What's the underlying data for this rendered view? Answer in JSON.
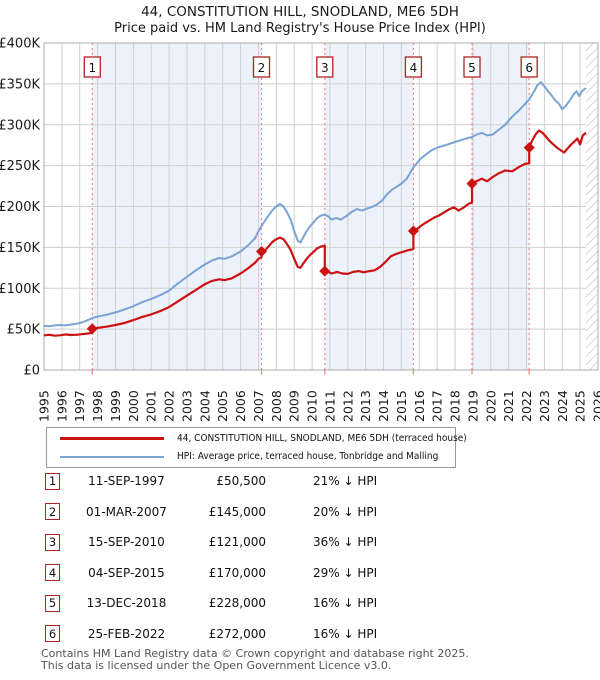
{
  "header": {
    "title": "44, CONSTITUTION HILL, SNODLAND, ME6 5DH",
    "subtitle": "Price paid vs. HM Land Registry's House Price Index (HPI)"
  },
  "colors": {
    "price": "#cc1111",
    "hpi": "#7aa3d4",
    "grid": "#cfcfcf",
    "plot_border": "#ababab",
    "band": "#edf2fa",
    "dashed": "#f28080",
    "box_border": "#b22222",
    "hatch": "#bbbbbb",
    "axis_text": "#1a1a1a"
  },
  "chart_data": {
    "type": "line",
    "title": "44, CONSTITUTION HILL, SNODLAND, ME6 5DH",
    "subtitle": "Price paid vs. HM Land Registry's House Price Index (HPI)",
    "xlabel": "",
    "ylabel": "",
    "xlim": [
      1995,
      2026
    ],
    "ylim": [
      0,
      400000
    ],
    "grid": true,
    "legend_position": "below",
    "x_ticks": [
      1995,
      1996,
      1997,
      1998,
      1999,
      2000,
      2001,
      2002,
      2003,
      2004,
      2005,
      2006,
      2007,
      2008,
      2009,
      2010,
      2011,
      2012,
      2013,
      2014,
      2015,
      2016,
      2017,
      2018,
      2019,
      2020,
      2021,
      2022,
      2023,
      2024,
      2025,
      2026
    ],
    "y_tick_values": [
      0,
      50000,
      100000,
      150000,
      200000,
      250000,
      300000,
      350000,
      400000
    ],
    "y_tick_labels": [
      "£0",
      "£50K",
      "£100K",
      "£150K",
      "£200K",
      "£250K",
      "£300K",
      "£350K",
      "£400K"
    ],
    "shaded_bands": [
      [
        1997.7,
        2007.17
      ],
      [
        2010.71,
        2015.67
      ],
      [
        2018.95,
        2022.15
      ]
    ],
    "future_hatch_start": 2025.33,
    "sales": [
      {
        "n": "1",
        "x": 1997.7,
        "price": 50500
      },
      {
        "n": "2",
        "x": 2007.17,
        "price": 145000
      },
      {
        "n": "3",
        "x": 2010.71,
        "price": 121000
      },
      {
        "n": "4",
        "x": 2015.67,
        "price": 170000
      },
      {
        "n": "5",
        "x": 2018.95,
        "price": 228000
      },
      {
        "n": "6",
        "x": 2022.15,
        "price": 272000
      }
    ],
    "series": [
      {
        "name": "44, CONSTITUTION HILL, SNODLAND, ME6 5DH (terraced house)",
        "color": "#cc1111",
        "width": 2.2,
        "points": [
          [
            1995.0,
            42500
          ],
          [
            1995.3,
            43000
          ],
          [
            1995.6,
            42000
          ],
          [
            1995.9,
            42500
          ],
          [
            1996.2,
            43500
          ],
          [
            1996.5,
            42800
          ],
          [
            1996.8,
            43000
          ],
          [
            1997.1,
            43800
          ],
          [
            1997.4,
            44500
          ],
          [
            1997.7,
            45500
          ],
          [
            1997.7,
            50500
          ],
          [
            1998.0,
            51500
          ],
          [
            1998.5,
            53000
          ],
          [
            1999.0,
            55000
          ],
          [
            1999.5,
            57500
          ],
          [
            2000.0,
            61000
          ],
          [
            2000.5,
            65000
          ],
          [
            2001.0,
            68000
          ],
          [
            2001.5,
            72000
          ],
          [
            2002.0,
            77000
          ],
          [
            2002.5,
            84000
          ],
          [
            2003.0,
            91000
          ],
          [
            2003.5,
            98000
          ],
          [
            2004.0,
            105000
          ],
          [
            2004.4,
            109000
          ],
          [
            2004.8,
            111000
          ],
          [
            2005.1,
            110000
          ],
          [
            2005.5,
            112000
          ],
          [
            2006.0,
            118000
          ],
          [
            2006.4,
            124000
          ],
          [
            2006.8,
            131000
          ],
          [
            2007.0,
            136000
          ],
          [
            2007.17,
            138000
          ],
          [
            2007.17,
            145000
          ],
          [
            2007.4,
            147000
          ],
          [
            2007.6,
            152000
          ],
          [
            2007.8,
            157000
          ],
          [
            2008.0,
            160000
          ],
          [
            2008.2,
            162000
          ],
          [
            2008.4,
            160000
          ],
          [
            2008.6,
            154000
          ],
          [
            2008.8,
            147000
          ],
          [
            2009.0,
            136000
          ],
          [
            2009.2,
            126000
          ],
          [
            2009.35,
            125000
          ],
          [
            2009.5,
            130000
          ],
          [
            2009.7,
            136000
          ],
          [
            2009.9,
            141000
          ],
          [
            2010.1,
            145000
          ],
          [
            2010.3,
            149000
          ],
          [
            2010.5,
            151000
          ],
          [
            2010.71,
            152000
          ],
          [
            2010.71,
            121000
          ],
          [
            2010.9,
            120000
          ],
          [
            2011.1,
            118000
          ],
          [
            2011.4,
            120000
          ],
          [
            2011.7,
            118000
          ],
          [
            2012.0,
            117500
          ],
          [
            2012.3,
            120000
          ],
          [
            2012.6,
            121000
          ],
          [
            2012.9,
            119500
          ],
          [
            2013.2,
            121000
          ],
          [
            2013.5,
            122000
          ],
          [
            2013.8,
            126000
          ],
          [
            2014.1,
            132000
          ],
          [
            2014.4,
            139000
          ],
          [
            2014.7,
            142000
          ],
          [
            2015.0,
            144000
          ],
          [
            2015.3,
            146000
          ],
          [
            2015.67,
            148000
          ],
          [
            2015.67,
            170000
          ],
          [
            2015.9,
            173000
          ],
          [
            2016.2,
            178000
          ],
          [
            2016.5,
            182000
          ],
          [
            2016.8,
            186000
          ],
          [
            2017.1,
            189000
          ],
          [
            2017.4,
            193000
          ],
          [
            2017.7,
            197000
          ],
          [
            2017.95,
            199000
          ],
          [
            2018.2,
            195000
          ],
          [
            2018.5,
            199000
          ],
          [
            2018.75,
            203000
          ],
          [
            2018.95,
            205000
          ],
          [
            2018.95,
            228000
          ],
          [
            2019.1,
            230000
          ],
          [
            2019.5,
            234000
          ],
          [
            2019.8,
            231000
          ],
          [
            2020.1,
            236000
          ],
          [
            2020.4,
            240000
          ],
          [
            2020.8,
            244000
          ],
          [
            2021.2,
            243000
          ],
          [
            2021.55,
            248000
          ],
          [
            2021.9,
            252000
          ],
          [
            2022.15,
            253000
          ],
          [
            2022.15,
            272000
          ],
          [
            2022.3,
            280000
          ],
          [
            2022.5,
            288000
          ],
          [
            2022.7,
            293000
          ],
          [
            2022.9,
            290000
          ],
          [
            2023.1,
            285000
          ],
          [
            2023.3,
            280000
          ],
          [
            2023.5,
            276000
          ],
          [
            2023.7,
            272000
          ],
          [
            2023.9,
            269000
          ],
          [
            2024.1,
            266000
          ],
          [
            2024.3,
            271000
          ],
          [
            2024.5,
            276000
          ],
          [
            2024.7,
            280000
          ],
          [
            2024.85,
            283000
          ],
          [
            2025.0,
            276000
          ],
          [
            2025.15,
            287000
          ],
          [
            2025.33,
            290000
          ]
        ]
      },
      {
        "name": "HPI: Average price, terraced house, Tonbridge and Malling",
        "color": "#7aa3d4",
        "width": 2.0,
        "points": [
          [
            1995.0,
            54000
          ],
          [
            1995.3,
            53500
          ],
          [
            1995.6,
            54500
          ],
          [
            1995.9,
            55000
          ],
          [
            1996.2,
            54500
          ],
          [
            1996.5,
            55500
          ],
          [
            1996.8,
            56500
          ],
          [
            1997.1,
            58000
          ],
          [
            1997.4,
            60500
          ],
          [
            1997.7,
            63500
          ],
          [
            1998.0,
            65500
          ],
          [
            1998.5,
            67500
          ],
          [
            1999.0,
            70500
          ],
          [
            1999.5,
            74000
          ],
          [
            2000.0,
            78000
          ],
          [
            2000.5,
            83000
          ],
          [
            2001.0,
            87000
          ],
          [
            2001.5,
            91500
          ],
          [
            2002.0,
            97000
          ],
          [
            2002.5,
            106000
          ],
          [
            2003.0,
            114000
          ],
          [
            2003.5,
            122000
          ],
          [
            2004.0,
            129000
          ],
          [
            2004.4,
            134000
          ],
          [
            2004.8,
            137000
          ],
          [
            2005.1,
            136000
          ],
          [
            2005.5,
            139000
          ],
          [
            2006.0,
            145000
          ],
          [
            2006.4,
            152000
          ],
          [
            2006.8,
            161000
          ],
          [
            2007.0,
            170000
          ],
          [
            2007.17,
            176000
          ],
          [
            2007.4,
            184000
          ],
          [
            2007.6,
            190000
          ],
          [
            2007.8,
            196000
          ],
          [
            2008.0,
            200000
          ],
          [
            2008.2,
            203000
          ],
          [
            2008.4,
            200000
          ],
          [
            2008.6,
            193000
          ],
          [
            2008.8,
            184000
          ],
          [
            2009.0,
            170000
          ],
          [
            2009.2,
            158000
          ],
          [
            2009.35,
            156000
          ],
          [
            2009.5,
            162000
          ],
          [
            2009.7,
            170000
          ],
          [
            2009.9,
            176000
          ],
          [
            2010.1,
            181000
          ],
          [
            2010.3,
            186000
          ],
          [
            2010.5,
            189000
          ],
          [
            2010.71,
            190000
          ],
          [
            2010.9,
            188000
          ],
          [
            2011.1,
            184000
          ],
          [
            2011.35,
            186000
          ],
          [
            2011.6,
            184000
          ],
          [
            2011.9,
            188000
          ],
          [
            2012.2,
            193000
          ],
          [
            2012.5,
            197000
          ],
          [
            2012.8,
            195000
          ],
          [
            2013.0,
            197000
          ],
          [
            2013.3,
            199000
          ],
          [
            2013.6,
            202000
          ],
          [
            2013.9,
            207000
          ],
          [
            2014.2,
            215000
          ],
          [
            2014.5,
            221000
          ],
          [
            2014.8,
            225000
          ],
          [
            2015.0,
            228000
          ],
          [
            2015.3,
            234000
          ],
          [
            2015.67,
            248000
          ],
          [
            2015.9,
            254000
          ],
          [
            2016.1,
            259000
          ],
          [
            2016.4,
            264000
          ],
          [
            2016.7,
            269000
          ],
          [
            2017.0,
            272000
          ],
          [
            2017.3,
            274000
          ],
          [
            2017.6,
            276000
          ],
          [
            2018.0,
            279000
          ],
          [
            2018.3,
            281000
          ],
          [
            2018.6,
            283000
          ],
          [
            2018.95,
            285000
          ],
          [
            2019.2,
            288000
          ],
          [
            2019.5,
            290000
          ],
          [
            2019.8,
            287000
          ],
          [
            2020.1,
            288000
          ],
          [
            2020.4,
            293000
          ],
          [
            2020.8,
            300000
          ],
          [
            2021.2,
            310000
          ],
          [
            2021.6,
            318000
          ],
          [
            2021.9,
            325000
          ],
          [
            2022.15,
            331000
          ],
          [
            2022.4,
            340000
          ],
          [
            2022.6,
            348000
          ],
          [
            2022.8,
            352000
          ],
          [
            2023.0,
            347000
          ],
          [
            2023.2,
            341000
          ],
          [
            2023.4,
            336000
          ],
          [
            2023.6,
            330000
          ],
          [
            2023.8,
            326000
          ],
          [
            2024.0,
            319000
          ],
          [
            2024.2,
            323000
          ],
          [
            2024.4,
            329000
          ],
          [
            2024.6,
            336000
          ],
          [
            2024.8,
            341000
          ],
          [
            2024.95,
            335000
          ],
          [
            2025.1,
            341000
          ],
          [
            2025.33,
            345000
          ]
        ]
      }
    ]
  },
  "legend": {
    "items": [
      {
        "label": "44, CONSTITUTION HILL, SNODLAND, ME6 5DH (terraced house)",
        "color": "#cc1111",
        "thickness": 3
      },
      {
        "label": "HPI: Average price, terraced house, Tonbridge and Malling",
        "color": "#7aa3d4",
        "thickness": 2.5
      }
    ]
  },
  "sales_table": {
    "rows": [
      {
        "num": "1",
        "date": "11-SEP-1997",
        "price": "£50,500",
        "vs_hpi": "21% ↓ HPI"
      },
      {
        "num": "2",
        "date": "01-MAR-2007",
        "price": "£145,000",
        "vs_hpi": "20% ↓ HPI"
      },
      {
        "num": "3",
        "date": "15-SEP-2010",
        "price": "£121,000",
        "vs_hpi": "36% ↓ HPI"
      },
      {
        "num": "4",
        "date": "04-SEP-2015",
        "price": "£170,000",
        "vs_hpi": "29% ↓ HPI"
      },
      {
        "num": "5",
        "date": "13-DEC-2018",
        "price": "£228,000",
        "vs_hpi": "16% ↓ HPI"
      },
      {
        "num": "6",
        "date": "25-FEB-2022",
        "price": "£272,000",
        "vs_hpi": "16% ↓ HPI"
      }
    ]
  },
  "footer": {
    "line1": "Contains HM Land Registry data © Crown copyright and database right 2025.",
    "line2": "This data is licensed under the Open Government Licence v3.0."
  }
}
